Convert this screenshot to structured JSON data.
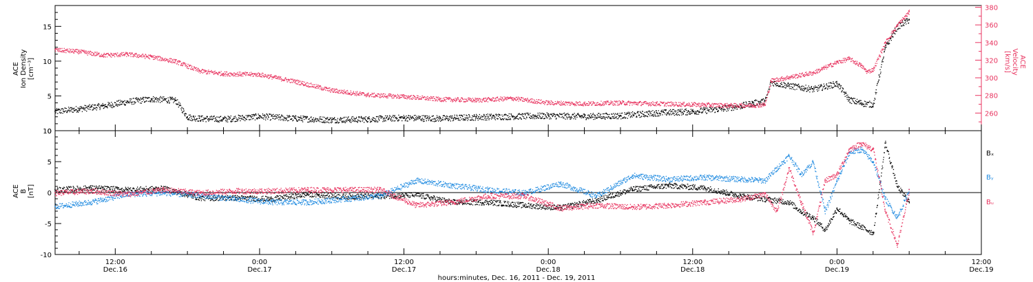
{
  "figure": {
    "xlabel": "hours:minutes, Dec. 16, 2011 - Dec. 19, 2011",
    "time_ticks": [
      {
        "hour": 12,
        "time": "12:00",
        "date": "Dec.16"
      },
      {
        "hour": 24,
        "time": "0:00",
        "date": "Dec.17"
      },
      {
        "hour": 36,
        "time": "12:00",
        "date": "Dec.17"
      },
      {
        "hour": 48,
        "time": "0:00",
        "date": "Dec.18"
      },
      {
        "hour": 60,
        "time": "12:00",
        "date": "Dec.18"
      },
      {
        "hour": 72,
        "time": "0:00",
        "date": "Dec.19"
      },
      {
        "hour": 84,
        "time": "12:00",
        "date": "Dec.19"
      }
    ]
  },
  "chart_data": [
    {
      "type": "scatter",
      "panel": "plasma",
      "ylabel_left": [
        "ACE",
        "Ion Density",
        "[cm⁻³]"
      ],
      "ylabel_right": [
        "ACE",
        "Velocity",
        "[km/s]"
      ],
      "x_range_hours": [
        7,
        84
      ],
      "ylim_left": [
        0,
        18
      ],
      "yticks_left": [
        0,
        5,
        10,
        15
      ],
      "ylim_right": [
        240,
        382
      ],
      "yticks_right": [
        260,
        280,
        300,
        320,
        340,
        360,
        380
      ],
      "series": [
        {
          "name": "Ion Density",
          "axis": "left",
          "color": "#000000",
          "x": [
            7,
            9,
            11,
            13,
            15,
            17,
            18,
            19,
            21,
            24,
            27,
            30,
            33,
            36,
            39,
            42,
            45,
            48,
            51,
            54,
            57,
            60,
            62,
            64,
            65,
            66,
            66.5,
            68,
            70,
            72,
            73,
            74,
            75,
            75.5,
            76,
            77,
            78
          ],
          "y": [
            2.8,
            3.2,
            3.6,
            4.2,
            4.6,
            4.4,
            2.0,
            1.8,
            1.7,
            2.1,
            1.8,
            1.6,
            1.7,
            1.9,
            1.8,
            2.0,
            2.1,
            2.2,
            2.1,
            2.2,
            2.6,
            2.8,
            3.1,
            3.6,
            4.0,
            4.3,
            7.0,
            6.5,
            6.0,
            6.8,
            4.5,
            4.0,
            3.8,
            8.0,
            12.0,
            15.0,
            16.0
          ]
        },
        {
          "name": "Velocity",
          "axis": "right",
          "color": "#e8335f",
          "x": [
            7,
            9,
            11,
            13,
            15,
            17,
            19,
            21,
            24,
            27,
            30,
            33,
            36,
            39,
            42,
            45,
            48,
            51,
            54,
            57,
            60,
            63,
            65,
            66,
            66.5,
            68,
            70,
            72,
            73,
            74,
            74.5,
            75,
            76,
            77,
            78
          ],
          "y": [
            332,
            330,
            326,
            327,
            324,
            319,
            308,
            305,
            304,
            296,
            286,
            281,
            279,
            276,
            275,
            277,
            272,
            271,
            272,
            271,
            270,
            269,
            269,
            270,
            297,
            301,
            306,
            318,
            322,
            314,
            307,
            310,
            340,
            360,
            375
          ]
        }
      ]
    },
    {
      "type": "scatter",
      "panel": "magnetic-field",
      "ylabel_left": [
        "ACE",
        "B",
        "[nT]"
      ],
      "x_range_hours": [
        7,
        84
      ],
      "ylim": [
        -10,
        10
      ],
      "yticks": [
        -10,
        -5,
        0,
        5,
        10
      ],
      "zero_line": true,
      "legend_position": "right",
      "series": [
        {
          "name": "Bₓ",
          "color": "#000000",
          "x": [
            7,
            10,
            13,
            16,
            19,
            22,
            25,
            28,
            31,
            34,
            37,
            40,
            43,
            46,
            49,
            52,
            55,
            58,
            61,
            64,
            66,
            68,
            69,
            70,
            71,
            72,
            73,
            74,
            75,
            76,
            77,
            78
          ],
          "y": [
            0.5,
            0.8,
            0.5,
            0.7,
            -0.8,
            -0.8,
            -1.0,
            -0.2,
            -0.6,
            -0.5,
            -0.3,
            -1.5,
            -1.5,
            -2.0,
            -2.4,
            -1.2,
            0.6,
            1.2,
            0.8,
            -0.5,
            -1.0,
            -1.5,
            -3.0,
            -4.0,
            -6.0,
            -2.5,
            -4.5,
            -5.5,
            -6.5,
            8.0,
            1.0,
            -1.5
          ]
        },
        {
          "name": "Bᵧ",
          "color": "#1f8ae0",
          "x": [
            7,
            10,
            13,
            16,
            19,
            22,
            25,
            28,
            31,
            34,
            37,
            40,
            43,
            46,
            49,
            52,
            55,
            58,
            61,
            64,
            66,
            67,
            68,
            69,
            70,
            71,
            72,
            73,
            74,
            75,
            76,
            77,
            78
          ],
          "y": [
            -2.2,
            -1.5,
            -0.2,
            0.0,
            -0.4,
            -1.0,
            -1.5,
            -1.5,
            -1.0,
            -0.5,
            2.0,
            1.2,
            0.5,
            0.0,
            1.5,
            -0.5,
            2.8,
            2.2,
            2.5,
            2.2,
            2.0,
            4.0,
            6.0,
            3.0,
            5.0,
            -3.0,
            2.0,
            6.5,
            7.0,
            5.0,
            -1.0,
            -4.0,
            0.5
          ]
        },
        {
          "name": "Bᵤ",
          "color": "#e8335f",
          "x": [
            7,
            10,
            13,
            16,
            19,
            22,
            25,
            28,
            31,
            34,
            37,
            40,
            43,
            46,
            49,
            52,
            55,
            58,
            61,
            64,
            66,
            67,
            68,
            69,
            70,
            71,
            72,
            73,
            74,
            75,
            76,
            77,
            78
          ],
          "y": [
            0.0,
            0.3,
            -0.2,
            0.5,
            0.0,
            0.3,
            0.3,
            0.5,
            0.5,
            0.5,
            -2.0,
            -1.5,
            -0.5,
            -0.5,
            -2.5,
            -2.0,
            -2.3,
            -2.0,
            -1.5,
            -1.0,
            -0.2,
            -3.0,
            4.0,
            -1.5,
            -6.5,
            2.0,
            3.0,
            7.0,
            8.0,
            7.0,
            -3.0,
            -8.5,
            0.5
          ]
        }
      ]
    }
  ]
}
